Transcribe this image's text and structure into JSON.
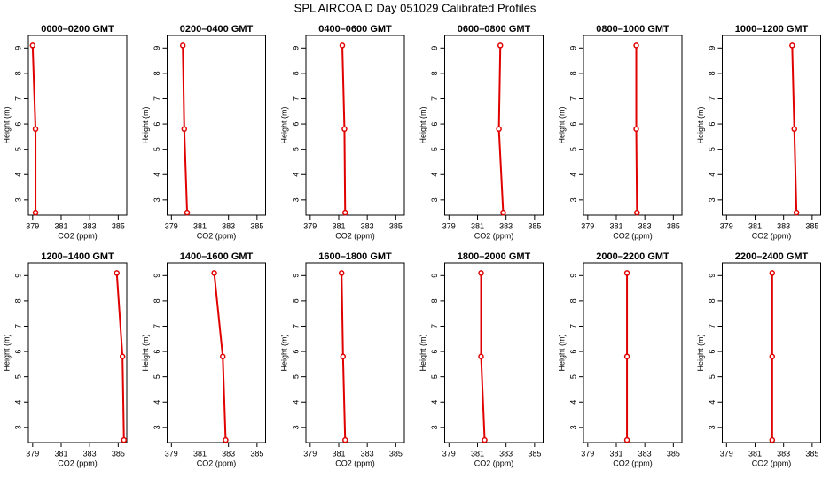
{
  "title": "SPL AIRCOA D  Day 051029  Calibrated Profiles",
  "chart_data": [
    {
      "type": "line",
      "title": "0000–0200 GMT",
      "xlabel": "CO2 (ppm)",
      "ylabel": "Height (m)",
      "xlim": [
        378.7,
        385.6
      ],
      "ylim": [
        2.4,
        9.5
      ],
      "xticks": [
        379,
        381,
        383,
        385
      ],
      "yticks": [
        3,
        4,
        5,
        6,
        7,
        8,
        9
      ],
      "x": [
        379.0,
        379.2,
        379.2
      ],
      "series": [
        {
          "color": "#e00000",
          "values": [
            9.1,
            5.8,
            2.5
          ]
        }
      ]
    },
    {
      "type": "line",
      "title": "0200–0400 GMT",
      "xlabel": "CO2 (ppm)",
      "ylabel": "Height (m)",
      "xlim": [
        378.7,
        385.6
      ],
      "ylim": [
        2.4,
        9.5
      ],
      "xticks": [
        379,
        381,
        383,
        385
      ],
      "yticks": [
        3,
        4,
        5,
        6,
        7,
        8,
        9
      ],
      "x": [
        379.8,
        379.9,
        380.1
      ],
      "series": [
        {
          "color": "#e00000",
          "values": [
            9.1,
            5.8,
            2.5
          ]
        }
      ]
    },
    {
      "type": "line",
      "title": "0400–0600 GMT",
      "xlabel": "CO2 (ppm)",
      "ylabel": "Height (m)",
      "xlim": [
        378.7,
        385.6
      ],
      "ylim": [
        2.4,
        9.5
      ],
      "xticks": [
        379,
        381,
        383,
        385
      ],
      "yticks": [
        3,
        4,
        5,
        6,
        7,
        8,
        9
      ],
      "x": [
        381.25,
        381.4,
        381.45
      ],
      "series": [
        {
          "color": "#e00000",
          "values": [
            9.1,
            5.8,
            2.5
          ]
        }
      ]
    },
    {
      "type": "line",
      "title": "0600–0800 GMT",
      "xlabel": "CO2 (ppm)",
      "ylabel": "Height (m)",
      "xlim": [
        378.7,
        385.6
      ],
      "ylim": [
        2.4,
        9.5
      ],
      "xticks": [
        379,
        381,
        383,
        385
      ],
      "yticks": [
        3,
        4,
        5,
        6,
        7,
        8,
        9
      ],
      "x": [
        382.6,
        382.5,
        382.8
      ],
      "series": [
        {
          "color": "#e00000",
          "values": [
            9.1,
            5.8,
            2.5
          ]
        }
      ]
    },
    {
      "type": "line",
      "title": "0800–1000 GMT",
      "xlabel": "CO2 (ppm)",
      "ylabel": "Height (m)",
      "xlim": [
        378.7,
        385.6
      ],
      "ylim": [
        2.4,
        9.5
      ],
      "xticks": [
        379,
        381,
        383,
        385
      ],
      "yticks": [
        3,
        4,
        5,
        6,
        7,
        8,
        9
      ],
      "x": [
        382.4,
        382.4,
        382.45
      ],
      "series": [
        {
          "color": "#e00000",
          "values": [
            9.1,
            5.8,
            2.5
          ]
        }
      ]
    },
    {
      "type": "line",
      "title": "1000–1200 GMT",
      "xlabel": "CO2 (ppm)",
      "ylabel": "Height (m)",
      "xlim": [
        378.7,
        385.6
      ],
      "ylim": [
        2.4,
        9.5
      ],
      "xticks": [
        379,
        381,
        383,
        385
      ],
      "yticks": [
        3,
        4,
        5,
        6,
        7,
        8,
        9
      ],
      "x": [
        383.6,
        383.75,
        383.9
      ],
      "series": [
        {
          "color": "#e00000",
          "values": [
            9.1,
            5.8,
            2.5
          ]
        }
      ]
    },
    {
      "type": "line",
      "title": "1200–1400 GMT",
      "xlabel": "CO2 (ppm)",
      "ylabel": "Height (m)",
      "xlim": [
        378.7,
        385.6
      ],
      "ylim": [
        2.4,
        9.5
      ],
      "xticks": [
        379,
        381,
        383,
        385
      ],
      "yticks": [
        3,
        4,
        5,
        6,
        7,
        8,
        9
      ],
      "x": [
        384.9,
        385.3,
        385.4
      ],
      "series": [
        {
          "color": "#e00000",
          "values": [
            9.1,
            5.8,
            2.5
          ]
        }
      ]
    },
    {
      "type": "line",
      "title": "1400–1600 GMT",
      "xlabel": "CO2 (ppm)",
      "ylabel": "Height (m)",
      "xlim": [
        378.7,
        385.6
      ],
      "ylim": [
        2.4,
        9.5
      ],
      "xticks": [
        379,
        381,
        383,
        385
      ],
      "yticks": [
        3,
        4,
        5,
        6,
        7,
        8,
        9
      ],
      "x": [
        382.0,
        382.6,
        382.8
      ],
      "series": [
        {
          "color": "#e00000",
          "values": [
            9.1,
            5.8,
            2.5
          ]
        }
      ]
    },
    {
      "type": "line",
      "title": "1600–1800 GMT",
      "xlabel": "CO2 (ppm)",
      "ylabel": "Height (m)",
      "xlim": [
        378.7,
        385.6
      ],
      "ylim": [
        2.4,
        9.5
      ],
      "xticks": [
        379,
        381,
        383,
        385
      ],
      "yticks": [
        3,
        4,
        5,
        6,
        7,
        8,
        9
      ],
      "x": [
        381.2,
        381.3,
        381.45
      ],
      "series": [
        {
          "color": "#e00000",
          "values": [
            9.1,
            5.8,
            2.5
          ]
        }
      ]
    },
    {
      "type": "line",
      "title": "1800–2000 GMT",
      "xlabel": "CO2 (ppm)",
      "ylabel": "Height (m)",
      "xlim": [
        378.7,
        385.6
      ],
      "ylim": [
        2.4,
        9.5
      ],
      "xticks": [
        379,
        381,
        383,
        385
      ],
      "yticks": [
        3,
        4,
        5,
        6,
        7,
        8,
        9
      ],
      "x": [
        381.25,
        381.25,
        381.5
      ],
      "series": [
        {
          "color": "#e00000",
          "values": [
            9.1,
            5.8,
            2.5
          ]
        }
      ]
    },
    {
      "type": "line",
      "title": "2000–2200 GMT",
      "xlabel": "CO2 (ppm)",
      "ylabel": "Height (m)",
      "xlim": [
        378.7,
        385.6
      ],
      "ylim": [
        2.4,
        9.5
      ],
      "xticks": [
        379,
        381,
        383,
        385
      ],
      "yticks": [
        3,
        4,
        5,
        6,
        7,
        8,
        9
      ],
      "x": [
        381.75,
        381.75,
        381.75
      ],
      "series": [
        {
          "color": "#e00000",
          "values": [
            9.1,
            5.8,
            2.5
          ]
        }
      ]
    },
    {
      "type": "line",
      "title": "2200–2400 GMT",
      "xlabel": "CO2 (ppm)",
      "ylabel": "Height (m)",
      "xlim": [
        378.7,
        385.6
      ],
      "ylim": [
        2.4,
        9.5
      ],
      "xticks": [
        379,
        381,
        383,
        385
      ],
      "yticks": [
        3,
        4,
        5,
        6,
        7,
        8,
        9
      ],
      "x": [
        382.2,
        382.2,
        382.2
      ],
      "series": [
        {
          "color": "#e00000",
          "values": [
            9.1,
            5.8,
            2.5
          ]
        }
      ]
    }
  ]
}
